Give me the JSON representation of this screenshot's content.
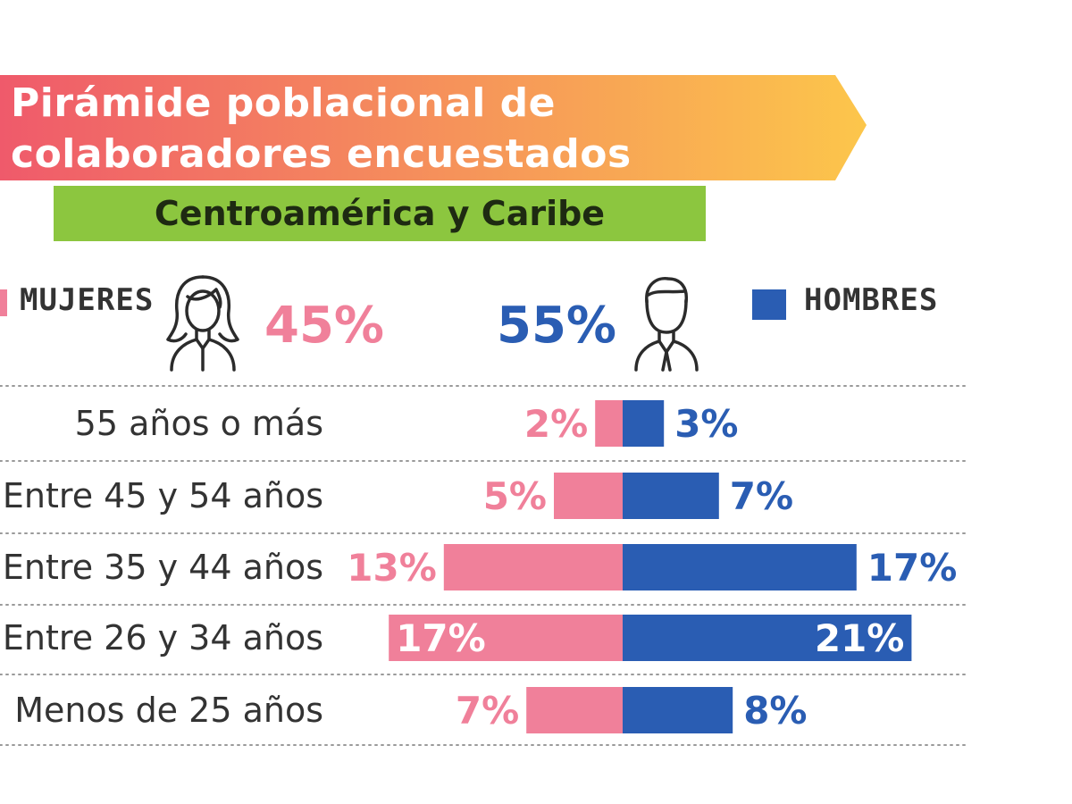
{
  "colors": {
    "women": "#f0809a",
    "men": "#2a5db3",
    "banner_start": "#ef5a6b",
    "banner_end": "#fcc64b",
    "subtitle_bg": "#8cc63f"
  },
  "legend": {
    "women_label": "MUJERES",
    "men_label": "HOMBRES",
    "women_total": "45%",
    "men_total": "55%"
  },
  "icons": {
    "women": "woman-outline-icon",
    "men": "man-outline-icon"
  },
  "chart_data": {
    "type": "bar",
    "orientation": "horizontal-population-pyramid",
    "title": "Pirámide poblacional de colaboradores encuestados",
    "title_lines": [
      "Pirámide poblacional de",
      "colaboradores encuestados"
    ],
    "subtitle": "Centroamérica y Caribe",
    "categories": [
      "55 años o más",
      "Entre 45 y 54 años",
      "Entre 35 y 44 años",
      "Entre 26 y 34 años",
      "Menos de 25 años"
    ],
    "series": [
      {
        "name": "MUJERES",
        "values": [
          2,
          5,
          13,
          17,
          7
        ],
        "labels": [
          "2%",
          "5%",
          "13%",
          "17%",
          "7%"
        ]
      },
      {
        "name": "HOMBRES",
        "values": [
          3,
          7,
          17,
          21,
          8
        ],
        "labels": [
          "3%",
          "7%",
          "17%",
          "21%",
          "8%"
        ]
      }
    ],
    "unit": "%",
    "grid": "dotted horizontal separators"
  }
}
